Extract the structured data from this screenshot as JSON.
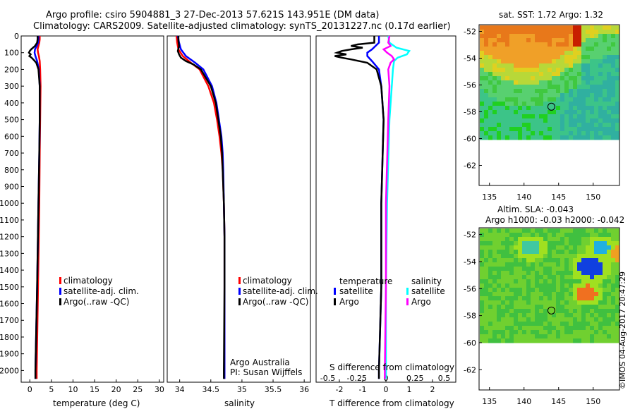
{
  "header": {
    "line1": "Argo profile: csiro 5904881_3 27-Dec-2013 57.621S 143.951E (DM data)",
    "line2": "Climatology: CARS2009. Satellite-adjusted climatology: synTS_20131227.nc (0.17d earlier)"
  },
  "colors": {
    "climatology": "#ff0000",
    "satellite": "#0000ff",
    "argo": "#000000",
    "salinity_satellite": "#00ffff",
    "salinity_argo": "#ff00ff"
  },
  "chart_data": [
    {
      "type": "line",
      "name": "temperature-profile",
      "xlabel": "temperature (deg C)",
      "xlim": [
        -2,
        31
      ],
      "ylim": [
        2070,
        0
      ],
      "xticks": [
        "0",
        "5",
        "10",
        "15",
        "20",
        "25",
        "30"
      ],
      "yticks": [
        "0",
        "100",
        "200",
        "300",
        "400",
        "500",
        "600",
        "700",
        "800",
        "900",
        "1000",
        "1100",
        "1200",
        "1300",
        "1400",
        "1500",
        "1600",
        "1700",
        "1800",
        "1900",
        "2000"
      ],
      "legend": [
        "climatology",
        "satellite-adj. clim.",
        "Argo(..raw -QC)"
      ],
      "series": [
        {
          "name": "climatology",
          "depth": [
            0,
            20,
            40,
            60,
            80,
            100,
            120,
            150,
            200,
            300,
            500,
            700,
            1000,
            1500,
            2000,
            2050
          ],
          "values": [
            2.3,
            2.3,
            2.2,
            2.0,
            1.8,
            1.9,
            2.1,
            2.3,
            2.4,
            2.5,
            2.4,
            2.3,
            2.2,
            1.9,
            1.6,
            1.6
          ]
        },
        {
          "name": "satellite-adj. clim.",
          "depth": [
            0,
            20,
            40,
            60,
            80,
            100,
            120,
            150,
            200,
            300,
            500,
            700,
            1000,
            1500,
            2000,
            2050
          ],
          "values": [
            2.0,
            2.0,
            1.9,
            1.6,
            1.2,
            1.1,
            1.3,
            1.7,
            2.1,
            2.3,
            2.3,
            2.2,
            2.0,
            1.7,
            1.3,
            1.3
          ]
        },
        {
          "name": "Argo",
          "depth": [
            0,
            20,
            40,
            60,
            80,
            90,
            100,
            110,
            120,
            130,
            140,
            160,
            200,
            300,
            500,
            700,
            1000,
            1500,
            2000,
            2050
          ],
          "values": [
            1.8,
            1.8,
            1.7,
            1.2,
            0.3,
            0.0,
            -0.2,
            0.2,
            -0.1,
            0.4,
            0.8,
            1.5,
            2.0,
            2.3,
            2.3,
            2.2,
            2.0,
            1.7,
            1.3,
            1.3
          ]
        }
      ]
    },
    {
      "type": "line",
      "name": "salinity-profile",
      "xlabel": "salinity",
      "xlim": [
        33.8,
        36.1
      ],
      "ylim": [
        2070,
        0
      ],
      "xticks": [
        "34",
        "34.5",
        "35",
        "35.5",
        "36"
      ],
      "legend": [
        "climatology",
        "satellite-adj. clim.",
        "Argo(..raw -QC)"
      ],
      "annotation": [
        "Argo Australia",
        "PI: Susan Wijffels"
      ],
      "series": [
        {
          "name": "climatology",
          "depth": [
            0,
            40,
            80,
            120,
            160,
            200,
            300,
            400,
            500,
            600,
            700,
            800,
            1000,
            1200,
            1500,
            2000,
            2050
          ],
          "values": [
            33.95,
            33.96,
            33.98,
            34.05,
            34.18,
            34.32,
            34.46,
            34.55,
            34.6,
            34.64,
            34.67,
            34.69,
            34.71,
            34.72,
            34.72,
            34.72,
            34.72
          ]
        },
        {
          "name": "satellite-adj. clim.",
          "depth": [
            0,
            40,
            80,
            120,
            160,
            200,
            300,
            400,
            500,
            600,
            700,
            800,
            1000,
            1200,
            1500,
            2000,
            2050
          ],
          "values": [
            33.97,
            33.99,
            34.02,
            34.1,
            34.25,
            34.38,
            34.52,
            34.59,
            34.63,
            34.67,
            34.69,
            34.7,
            34.71,
            34.72,
            34.72,
            34.72,
            34.72
          ]
        },
        {
          "name": "Argo",
          "depth": [
            0,
            30,
            60,
            90,
            110,
            130,
            150,
            170,
            200,
            300,
            400,
            500,
            600,
            700,
            800,
            1000,
            1200,
            1500,
            2000,
            2050
          ],
          "values": [
            33.98,
            33.98,
            33.99,
            33.97,
            33.99,
            34.02,
            34.1,
            34.22,
            34.34,
            34.5,
            34.58,
            34.62,
            34.66,
            34.68,
            34.69,
            34.71,
            34.72,
            34.72,
            34.71,
            34.71
          ]
        }
      ]
    },
    {
      "type": "line",
      "name": "difference-profile",
      "xlabel": "T difference from climatology",
      "xlabel_top": "S difference from climatology",
      "xlim": [
        -3,
        3
      ],
      "ylim": [
        2070,
        0
      ],
      "xticks": [
        "-2",
        "-1",
        "0",
        "1",
        "2"
      ],
      "sticks": [
        "-0.5",
        "-0.25",
        "0",
        "0.25",
        "0.5"
      ],
      "legend_temperature": "temperature",
      "legend_salinity": "salinity",
      "legend_items": [
        "satellite",
        "Argo",
        "satellite",
        "Argo"
      ],
      "series": [
        {
          "name": "T satellite",
          "depth": [
            0,
            40,
            80,
            100,
            120,
            150,
            200,
            300,
            500,
            1000,
            1500,
            2000,
            2050
          ],
          "values": [
            -0.3,
            -0.3,
            -0.6,
            -0.8,
            -0.8,
            -0.6,
            -0.3,
            -0.2,
            -0.1,
            -0.2,
            -0.2,
            -0.3,
            -0.3
          ]
        },
        {
          "name": "T Argo",
          "depth": [
            0,
            20,
            40,
            50,
            60,
            70,
            80,
            90,
            100,
            110,
            120,
            130,
            140,
            160,
            200,
            300,
            500,
            1000,
            1500,
            2000,
            2050
          ],
          "values": [
            -0.5,
            -0.5,
            -0.5,
            -1.2,
            -1.5,
            -1.0,
            -1.5,
            -1.9,
            -2.1,
            -1.7,
            -2.2,
            -1.9,
            -1.5,
            -0.8,
            -0.4,
            -0.2,
            -0.1,
            -0.2,
            -0.2,
            -0.3,
            -0.3
          ]
        },
        {
          "name": "S satellite",
          "depth": [
            0,
            40,
            70,
            90,
            110,
            130,
            150,
            200,
            300,
            500,
            1000,
            1500,
            2000,
            2050
          ],
          "values": [
            0.02,
            0.03,
            0.09,
            0.2,
            0.18,
            0.1,
            0.07,
            0.06,
            0.05,
            0.03,
            0.01,
            0.0,
            0.0,
            0.0
          ]
        },
        {
          "name": "S Argo",
          "depth": [
            0,
            40,
            60,
            80,
            100,
            120,
            140,
            160,
            200,
            300,
            500,
            1000,
            1500,
            2000,
            2050
          ],
          "values": [
            0.03,
            0.02,
            0.04,
            -0.02,
            0.01,
            0.05,
            0.07,
            0.04,
            0.02,
            0.03,
            0.02,
            0.0,
            0.0,
            -0.01,
            -0.01
          ]
        }
      ]
    }
  ],
  "maps": {
    "sst": {
      "title": "sat. SST: 1.72 Argo: 1.32",
      "yticks": [
        "-52",
        "-54",
        "-56",
        "-58",
        "-60",
        "-62"
      ],
      "xticks": [
        "135",
        "140",
        "145",
        "150"
      ],
      "float_lon": 143.951,
      "float_lat": -57.621
    },
    "sla": {
      "title1": "Altim. SLA: -0.043",
      "title2": "Argo h1000: -0.03 h2000: -0.042",
      "yticks": [
        "-52",
        "-54",
        "-56",
        "-58",
        "-60",
        "-62"
      ],
      "xticks": [
        "135",
        "140",
        "145",
        "150"
      ],
      "float_lon": 143.951,
      "float_lat": -57.621
    }
  },
  "footer": {
    "stamp": "©IMOS 04-Aug-2017 20:47:29"
  }
}
